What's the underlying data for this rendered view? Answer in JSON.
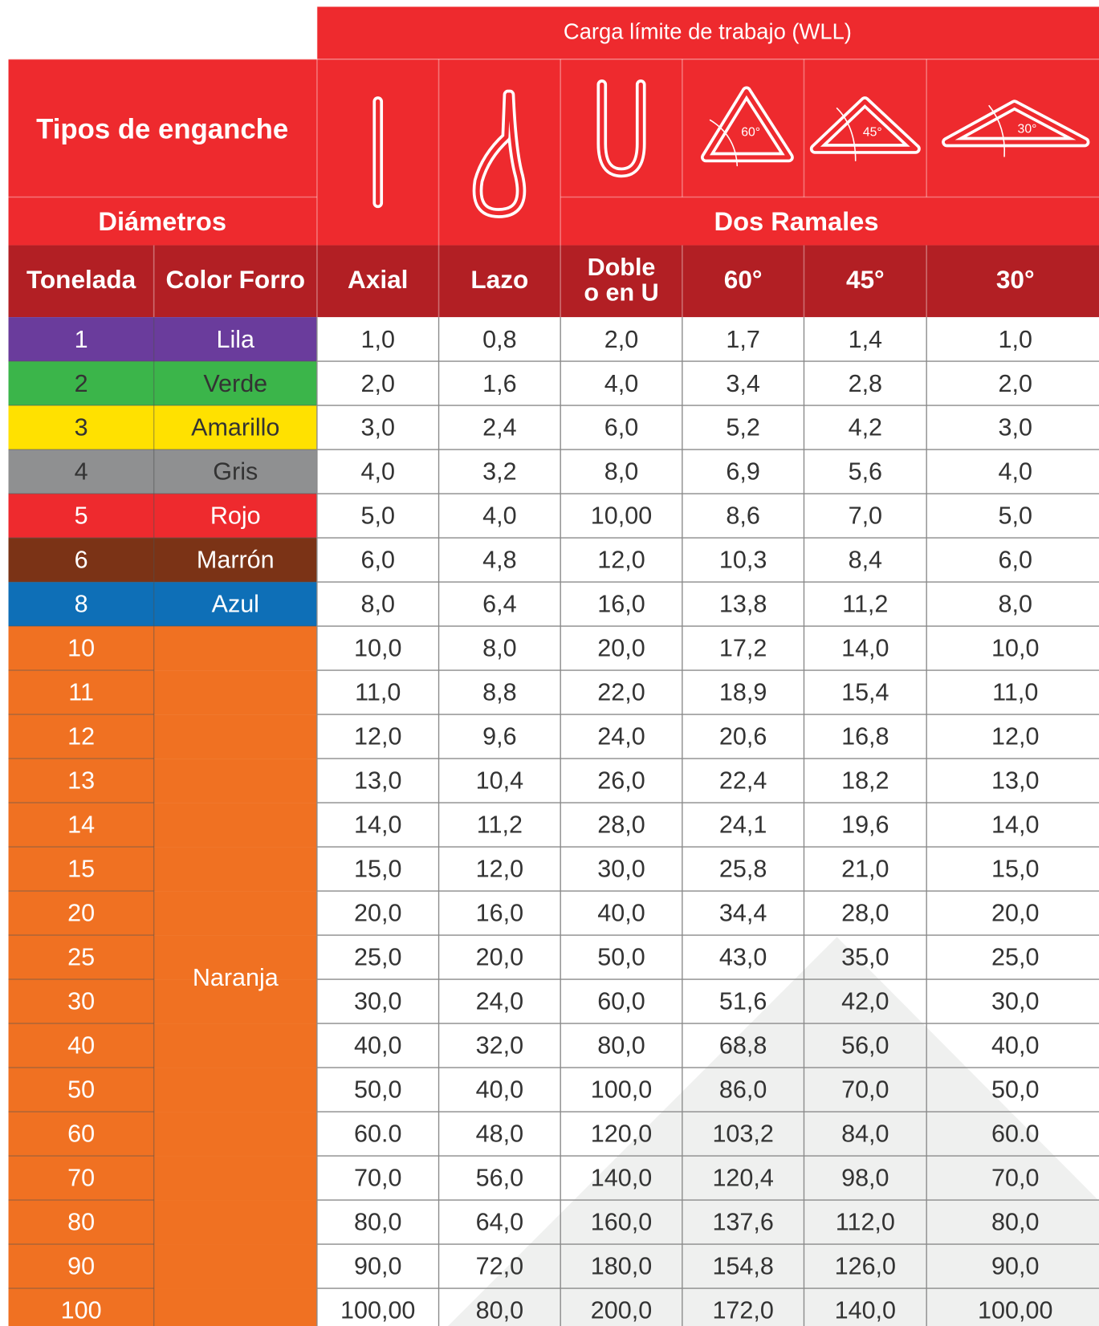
{
  "header": {
    "title": "Carga límite de trabajo (WLL)",
    "hitch_types": "Tipos de enganche",
    "diameters": "Diámetros",
    "two_legs": "Dos Ramales",
    "angles": [
      "60°",
      "45°",
      "30°"
    ]
  },
  "columns": [
    "Tonelada",
    "Color Forro",
    "Axial",
    "Lazo",
    [
      "Doble",
      "o en U"
    ],
    "60°",
    "45°",
    "30°"
  ],
  "rows": [
    [
      "1",
      "Lila",
      "1,0",
      "0,8",
      "2,0",
      "1,7",
      "1,4",
      "1,0"
    ],
    [
      "2",
      "Verde",
      "2,0",
      "1,6",
      "4,0",
      "3,4",
      "2,8",
      "2,0"
    ],
    [
      "3",
      "Amarillo",
      "3,0",
      "2,4",
      "6,0",
      "5,2",
      "4,2",
      "3,0"
    ],
    [
      "4",
      "Gris",
      "4,0",
      "3,2",
      "8,0",
      "6,9",
      "5,6",
      "4,0"
    ],
    [
      "5",
      "Rojo",
      "5,0",
      "4,0",
      "10,00",
      "8,6",
      "7,0",
      "5,0"
    ],
    [
      "6",
      "Marrón",
      "6,0",
      "4,8",
      "12,0",
      "10,3",
      "8,4",
      "6,0"
    ],
    [
      "8",
      "Azul",
      "8,0",
      "6,4",
      "16,0",
      "13,8",
      "11,2",
      "8,0"
    ],
    [
      "10",
      null,
      "10,0",
      "8,0",
      "20,0",
      "17,2",
      "14,0",
      "10,0"
    ],
    [
      "11",
      null,
      "11,0",
      "8,8",
      "22,0",
      "18,9",
      "15,4",
      "11,0"
    ],
    [
      "12",
      null,
      "12,0",
      "9,6",
      "24,0",
      "20,6",
      "16,8",
      "12,0"
    ],
    [
      "13",
      null,
      "13,0",
      "10,4",
      "26,0",
      "22,4",
      "18,2",
      "13,0"
    ],
    [
      "14",
      null,
      "14,0",
      "11,2",
      "28,0",
      "24,1",
      "19,6",
      "14,0"
    ],
    [
      "15",
      null,
      "15,0",
      "12,0",
      "30,0",
      "25,8",
      "21,0",
      "15,0"
    ],
    [
      "20",
      null,
      "20,0",
      "16,0",
      "40,0",
      "34,4",
      "28,0",
      "20,0"
    ],
    [
      "25",
      null,
      "25,0",
      "20,0",
      "50,0",
      "43,0",
      "35,0",
      "25,0"
    ],
    [
      "30",
      null,
      "30,0",
      "24,0",
      "60,0",
      "51,6",
      "42,0",
      "30,0"
    ],
    [
      "40",
      null,
      "40,0",
      "32,0",
      "80,0",
      "68,8",
      "56,0",
      "40,0"
    ],
    [
      "50",
      null,
      "50,0",
      "40,0",
      "100,0",
      "86,0",
      "70,0",
      "50,0"
    ],
    [
      "60",
      null,
      "60.0",
      "48,0",
      "120,0",
      "103,2",
      "84,0",
      "60.0"
    ],
    [
      "70",
      null,
      "70,0",
      "56,0",
      "140,0",
      "120,4",
      "98,0",
      "70,0"
    ],
    [
      "80",
      null,
      "80,0",
      "64,0",
      "160,0",
      "137,6",
      "112,0",
      "80,0"
    ],
    [
      "90",
      null,
      "90,0",
      "72,0",
      "180,0",
      "154,8",
      "126,0",
      "90,0"
    ],
    [
      "100",
      null,
      "100,00",
      "80,0",
      "200,0",
      "172,0",
      "140,0",
      "100,00"
    ]
  ],
  "shared_color": "Naranja",
  "fills": [
    [
      "#6a3c9c",
      "#fff"
    ],
    [
      "#3bb54a",
      "#333"
    ],
    [
      "#ffe100",
      "#333"
    ],
    [
      "#8f9091",
      "#333"
    ],
    [
      "#ee2a2e",
      "#fff"
    ],
    [
      "#7b3316",
      "#fff"
    ],
    [
      "#0e6fb7",
      "#fff"
    ]
  ],
  "shared_fill": "#f07122"
}
